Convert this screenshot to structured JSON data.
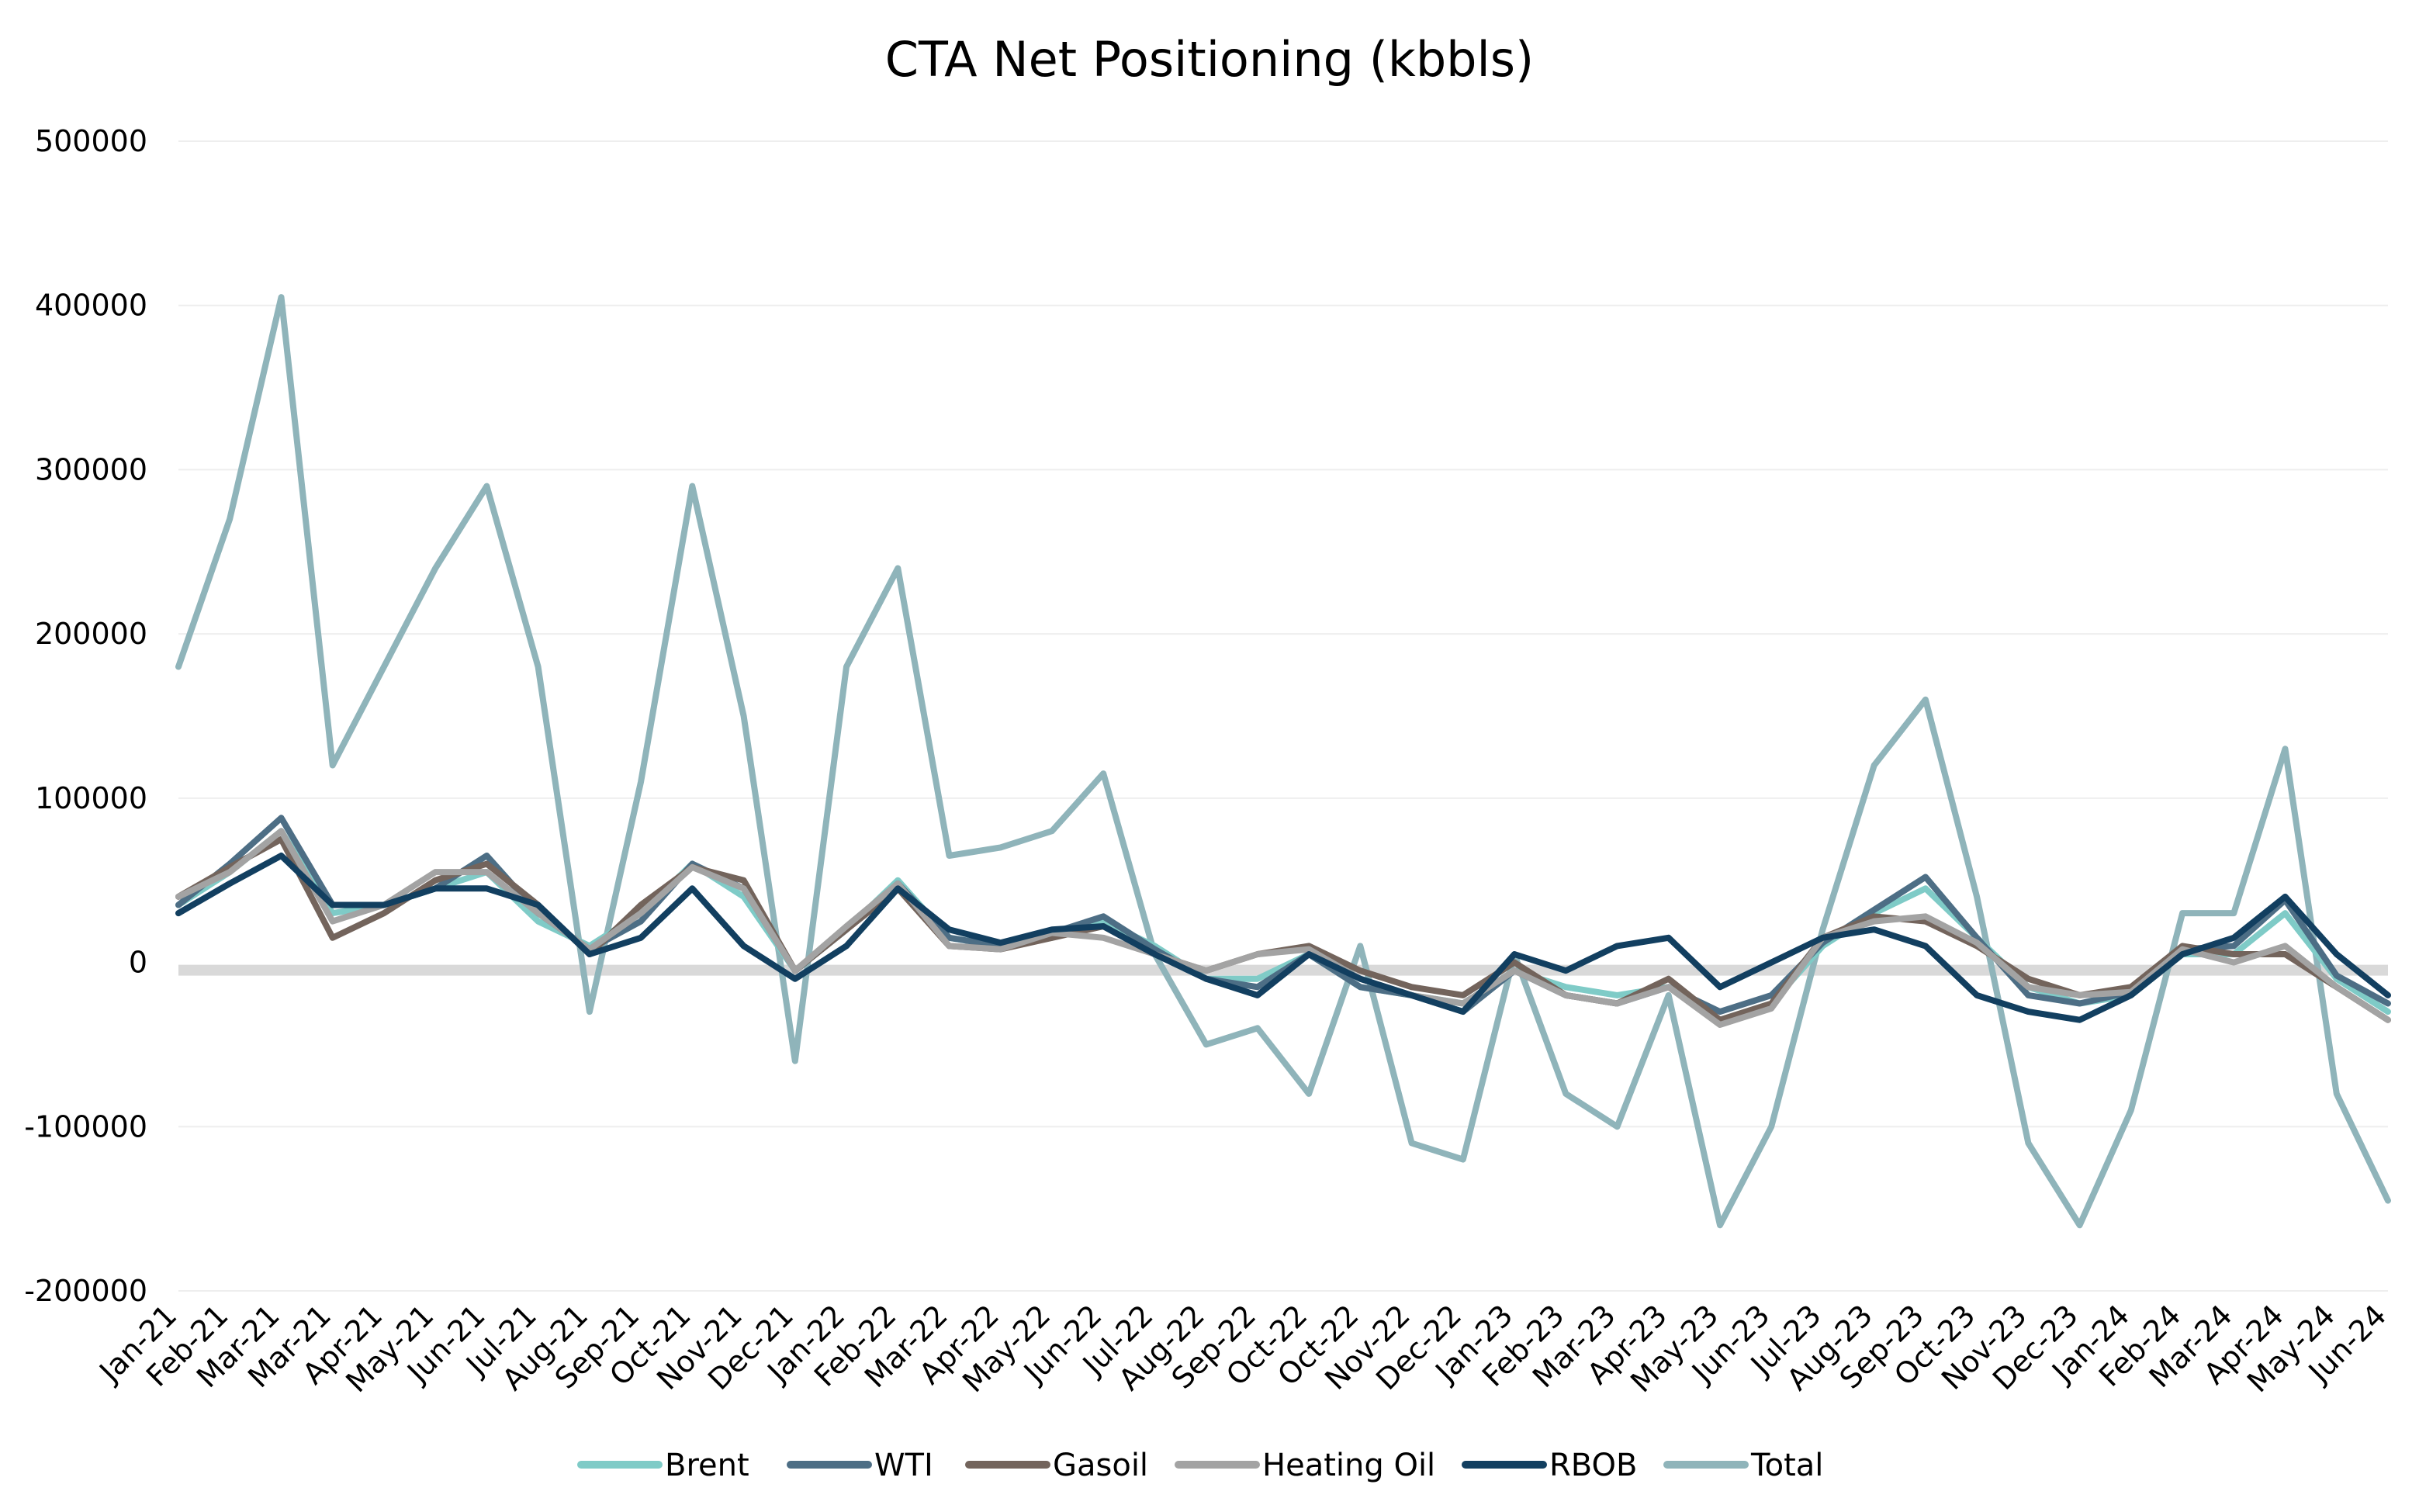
{
  "chart_data": {
    "type": "line",
    "title": "CTA Net Positioning (kbbls)",
    "xlabel": "",
    "ylabel": "",
    "ylim": [
      -200000,
      500000
    ],
    "yticks": [
      500000,
      400000,
      300000,
      200000,
      100000,
      0,
      -100000,
      -200000
    ],
    "ytick_labels": [
      "500000",
      "400000",
      "300000",
      "200000",
      "100000",
      "0",
      "-100000",
      "-200000"
    ],
    "categories": [
      "Jan-21",
      "Feb-21",
      "Mar-21",
      "Mar-21",
      "Apr-21",
      "May-21",
      "Jun-21",
      "Jul-21",
      "Aug-21",
      "Sep-21",
      "Oct-21",
      "Nov-21",
      "Dec-21",
      "Jan-22",
      "Feb-22",
      "Mar-22",
      "Apr-22",
      "May-22",
      "Jun-22",
      "Jul-22",
      "Aug-22",
      "Sep-22",
      "Oct-22",
      "Oct-22",
      "Nov-22",
      "Dec-22",
      "Jan-23",
      "Feb-23",
      "Mar-23",
      "Apr-23",
      "May-23",
      "Jun-23",
      "Jul-23",
      "Aug-23",
      "Sep-23",
      "Oct-23",
      "Nov-23",
      "Dec-23",
      "Jan-24",
      "Feb-24",
      "Mar-24",
      "Apr-24",
      "May-24",
      "Jun-24"
    ],
    "grid": true,
    "legend_position": "bottom",
    "series": [
      {
        "name": "Brent",
        "color": "#7fcbc7",
        "values": [
          35000,
          55000,
          80000,
          30000,
          35000,
          45000,
          55000,
          25000,
          10000,
          30000,
          60000,
          40000,
          -5000,
          20000,
          50000,
          15000,
          10000,
          15000,
          25000,
          10000,
          -10000,
          -10000,
          5000,
          -15000,
          -20000,
          -25000,
          -5000,
          -15000,
          -20000,
          -15000,
          -35000,
          -25000,
          10000,
          30000,
          45000,
          15000,
          -15000,
          -25000,
          -20000,
          5000,
          5000,
          30000,
          -10000,
          -30000
        ]
      },
      {
        "name": "WTI",
        "color": "#4d6e85",
        "values": [
          35000,
          60000,
          88000,
          35000,
          35000,
          45000,
          65000,
          30000,
          8000,
          25000,
          60000,
          45000,
          -5000,
          20000,
          48000,
          15000,
          10000,
          18000,
          28000,
          8000,
          -10000,
          -15000,
          5000,
          -15000,
          -20000,
          -30000,
          -5000,
          -20000,
          -25000,
          -15000,
          -30000,
          -20000,
          12000,
          32000,
          52000,
          15000,
          -20000,
          -25000,
          -18000,
          8000,
          10000,
          38000,
          -8000,
          -25000
        ]
      },
      {
        "name": "Gasoil",
        "color": "#73645c",
        "values": [
          40000,
          58000,
          75000,
          15000,
          30000,
          50000,
          60000,
          35000,
          5000,
          35000,
          58000,
          50000,
          -5000,
          20000,
          45000,
          10000,
          8000,
          15000,
          22000,
          5000,
          -5000,
          5000,
          10000,
          -5000,
          -15000,
          -20000,
          0,
          -20000,
          -25000,
          -10000,
          -35000,
          -25000,
          15000,
          28000,
          25000,
          10000,
          -10000,
          -20000,
          -15000,
          10000,
          5000,
          5000,
          -15000,
          -35000
        ]
      },
      {
        "name": "Heating Oil",
        "color": "#a3a3a3",
        "values": [
          40000,
          55000,
          80000,
          25000,
          35000,
          55000,
          55000,
          30000,
          8000,
          30000,
          58000,
          45000,
          -5000,
          22000,
          48000,
          10000,
          8000,
          18000,
          15000,
          5000,
          -5000,
          5000,
          8000,
          -10000,
          -20000,
          -25000,
          -5000,
          -20000,
          -25000,
          -15000,
          -38000,
          -28000,
          15000,
          25000,
          28000,
          12000,
          -15000,
          -20000,
          -18000,
          8000,
          0,
          10000,
          -15000,
          -35000
        ]
      },
      {
        "name": "RBOB",
        "color": "#123f60",
        "values": [
          30000,
          48000,
          65000,
          35000,
          35000,
          45000,
          45000,
          35000,
          5000,
          15000,
          45000,
          10000,
          -10000,
          10000,
          45000,
          20000,
          12000,
          20000,
          22000,
          5000,
          -10000,
          -20000,
          5000,
          -10000,
          -20000,
          -30000,
          5000,
          -5000,
          10000,
          15000,
          -15000,
          0,
          15000,
          20000,
          10000,
          -20000,
          -30000,
          -35000,
          -20000,
          5000,
          15000,
          40000,
          5000,
          -20000
        ]
      },
      {
        "name": "Total",
        "color": "#8fb4ba",
        "values": [
          180000,
          270000,
          405000,
          120000,
          180000,
          240000,
          290000,
          180000,
          -30000,
          110000,
          290000,
          150000,
          -60000,
          180000,
          240000,
          65000,
          70000,
          80000,
          115000,
          5000,
          -50000,
          -40000,
          -80000,
          10000,
          -110000,
          -120000,
          5000,
          -80000,
          -100000,
          -20000,
          -160000,
          -100000,
          20000,
          120000,
          160000,
          40000,
          -110000,
          -160000,
          -90000,
          30000,
          30000,
          130000,
          -80000,
          -145000
        ]
      }
    ]
  }
}
